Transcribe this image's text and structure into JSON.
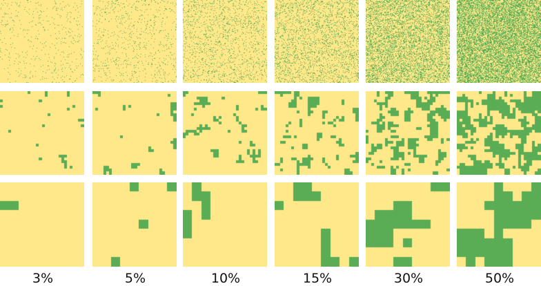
{
  "colors": {
    "background": "#ffe88a",
    "cluster": "#5aad54",
    "gap": "#ffffff"
  },
  "columns": [
    {
      "label": "3%",
      "fraction": 0.03
    },
    {
      "label": "5%",
      "fraction": 0.05
    },
    {
      "label": "10%",
      "fraction": 0.1
    },
    {
      "label": "15%",
      "fraction": 0.15
    },
    {
      "label": "30%",
      "fraction": 0.3
    },
    {
      "label": "50%",
      "fraction": 0.5
    }
  ]
}
